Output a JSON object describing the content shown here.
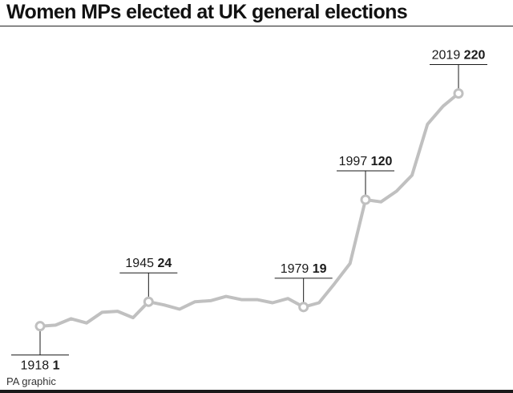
{
  "title": "Women MPs elected at UK general elections",
  "source": "PA graphic",
  "colors": {
    "line": "#c0c0c0",
    "text": "#1a1a1a",
    "rule": "#222222"
  },
  "chart_data": {
    "type": "line",
    "title": "Women MPs elected at UK general elections",
    "xlabel": "",
    "ylabel": "",
    "grid": false,
    "ylim": [
      0,
      230
    ],
    "x": [
      1918,
      1922,
      1923,
      1924,
      1929,
      1931,
      1935,
      1945,
      1950,
      1951,
      1955,
      1959,
      1964,
      1966,
      1970,
      1974,
      1974.8,
      1979,
      1983,
      1987,
      1992,
      1997,
      2001,
      2005,
      2010,
      2015,
      2017,
      2019
    ],
    "values": [
      1,
      2,
      8,
      4,
      14,
      15,
      9,
      24,
      21,
      17,
      24,
      25,
      29,
      26,
      26,
      23,
      27,
      19,
      23,
      41,
      60,
      120,
      118,
      128,
      143,
      191,
      208,
      220
    ],
    "annotations": [
      {
        "year": "1918",
        "value": "1",
        "index": 0,
        "pos": "below"
      },
      {
        "year": "1945",
        "value": "24",
        "index": 7,
        "pos": "above"
      },
      {
        "year": "1979",
        "value": "19",
        "index": 17,
        "pos": "above"
      },
      {
        "year": "1997",
        "value": "120",
        "index": 21,
        "pos": "above"
      },
      {
        "year": "2019",
        "value": "220",
        "index": 27,
        "pos": "above"
      }
    ]
  }
}
